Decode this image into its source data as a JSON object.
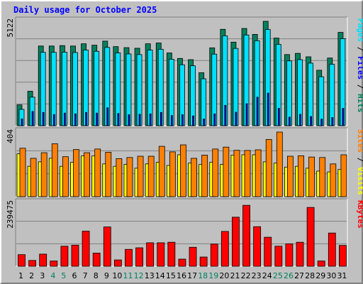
{
  "title": "Daily usage for October 2025",
  "colors": {
    "hits": "#00805c",
    "files": "#00e0ff",
    "pages": "#0000ff",
    "visits": "#ff8000",
    "sites": "#ffff00",
    "kbytes": "#ff0000",
    "weekend_label": "#00805c",
    "weekday_label": "#000000"
  },
  "chart_data": [
    {
      "type": "bar",
      "ylabel_max": "5122",
      "ylim": [
        0,
        5122
      ],
      "legend": [
        {
          "text": "Pages",
          "color": "#00e0ff"
        },
        {
          "text": " / ",
          "color": "#000000"
        },
        {
          "text": "Files",
          "color": "#0000ff"
        },
        {
          "text": " / ",
          "color": "#000000"
        },
        {
          "text": "Hits",
          "color": "#00805c"
        }
      ],
      "categories": [
        "1",
        "2",
        "3",
        "4",
        "5",
        "6",
        "7",
        "8",
        "9",
        "10",
        "11",
        "12",
        "13",
        "14",
        "15",
        "16",
        "17",
        "18",
        "19",
        "20",
        "21",
        "22",
        "23",
        "24",
        "25",
        "26",
        "27",
        "28",
        "29",
        "30",
        "31"
      ],
      "weekend": [
        4,
        5,
        11,
        12,
        18,
        19,
        25,
        26
      ],
      "series": [
        {
          "name": "Hits",
          "color": "#00805c",
          "values": [
            1020,
            1690,
            3910,
            3910,
            3930,
            3910,
            4020,
            3950,
            4150,
            3880,
            3830,
            3800,
            4020,
            4060,
            3570,
            3300,
            3240,
            2600,
            3820,
            4730,
            4100,
            4770,
            4480,
            5122,
            4300,
            3490,
            3550,
            3380,
            2720,
            3320,
            4580
          ]
        },
        {
          "name": "Files",
          "color": "#00e0ff",
          "values": [
            800,
            1400,
            3600,
            3600,
            3610,
            3590,
            3710,
            3650,
            3840,
            3570,
            3520,
            3490,
            3710,
            3750,
            3260,
            2990,
            2940,
            2300,
            3510,
            4410,
            3790,
            4450,
            4170,
            4720,
            3990,
            3180,
            3240,
            3070,
            2400,
            3010,
            4270
          ]
        },
        {
          "name": "Pages",
          "color": "#0000ff",
          "values": [
            330,
            700,
            650,
            550,
            620,
            580,
            650,
            620,
            880,
            600,
            540,
            560,
            580,
            650,
            500,
            540,
            480,
            330,
            580,
            1000,
            660,
            1080,
            1400,
            1600,
            850,
            420,
            560,
            450,
            320,
            400,
            850
          ]
        }
      ]
    },
    {
      "type": "bar",
      "ylabel_max": "404",
      "ylim": [
        0,
        404
      ],
      "legend": [
        {
          "text": "Sites",
          "color": "#ff8000"
        },
        {
          "text": " / ",
          "color": "#000000"
        },
        {
          "text": "Visits",
          "color": "#ffff00"
        }
      ],
      "categories": [
        "1",
        "2",
        "3",
        "4",
        "5",
        "6",
        "7",
        "8",
        "9",
        "10",
        "11",
        "12",
        "13",
        "14",
        "15",
        "16",
        "17",
        "18",
        "19",
        "20",
        "21",
        "22",
        "23",
        "24",
        "25",
        "26",
        "27",
        "28",
        "29",
        "30",
        "31"
      ],
      "weekend": [
        4,
        5,
        11,
        12,
        18,
        19,
        25,
        26
      ],
      "series": [
        {
          "name": "Visits",
          "color": "#ffff00",
          "values": [
            268,
            190,
            218,
            240,
            190,
            215,
            255,
            255,
            205,
            190,
            202,
            178,
            205,
            215,
            195,
            262,
            210,
            202,
            215,
            202,
            260,
            262,
            262,
            218,
            210,
            185,
            190,
            178,
            160,
            155,
            170
          ]
        },
        {
          "name": "Sites",
          "color": "#ff8000",
          "values": [
            303,
            240,
            275,
            331,
            250,
            295,
            275,
            298,
            278,
            238,
            245,
            253,
            253,
            315,
            280,
            324,
            240,
            260,
            298,
            310,
            290,
            289,
            293,
            358,
            404,
            253,
            256,
            248,
            245,
            205,
            262
          ]
        }
      ]
    },
    {
      "type": "bar",
      "ylabel_max": "239475",
      "ylim": [
        0,
        239475
      ],
      "legend": [
        {
          "text": "KBytes",
          "color": "#ff0000"
        }
      ],
      "categories": [
        "1",
        "2",
        "3",
        "4",
        "5",
        "6",
        "7",
        "8",
        "9",
        "10",
        "11",
        "12",
        "13",
        "14",
        "15",
        "16",
        "17",
        "18",
        "19",
        "20",
        "21",
        "22",
        "23",
        "24",
        "25",
        "26",
        "27",
        "28",
        "29",
        "30",
        "31"
      ],
      "weekend": [
        4,
        5,
        11,
        12,
        18,
        19,
        25,
        26
      ],
      "series": [
        {
          "name": "KBytes",
          "color": "#ff0000",
          "values": [
            44000,
            22000,
            46000,
            20000,
            76000,
            80000,
            133000,
            50000,
            149000,
            24000,
            64000,
            70000,
            89000,
            89000,
            91000,
            27000,
            72000,
            35000,
            84000,
            132000,
            186000,
            231000,
            150000,
            110000,
            76000,
            85000,
            91000,
            223000,
            20000,
            126000,
            79000
          ]
        }
      ]
    }
  ]
}
